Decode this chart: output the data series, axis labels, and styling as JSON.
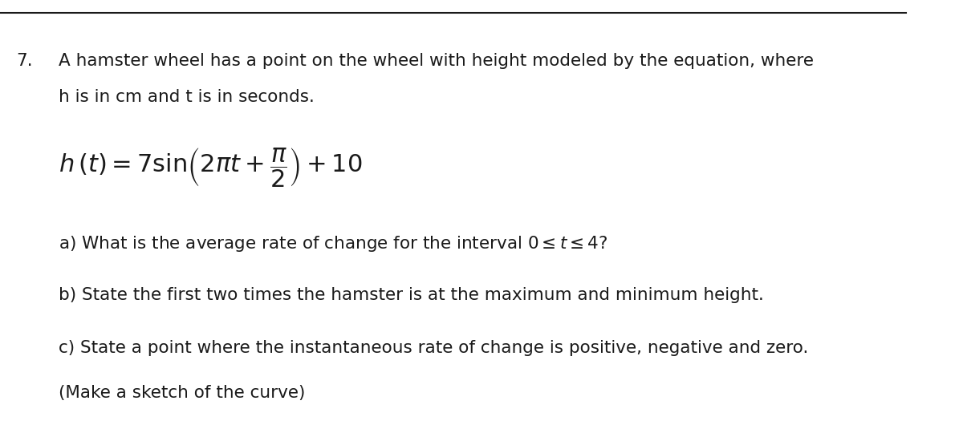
{
  "background_color": "#ffffff",
  "number_label": "7.",
  "line1": "A hamster wheel has a point on the wheel with height modeled by the equation, where",
  "line2": "h is in cm and t is in seconds.",
  "equation_latex": "$h\\,(t) = 7\\sin\\!\\left(2\\pi t + \\dfrac{\\pi}{2}\\right) + 10$",
  "part_a": "a) What is the average rate of change for the interval $0 \\leq t \\leq 4$?",
  "part_b": "b) State the first two times the hamster is at the maximum and minimum height.",
  "part_c1": "c) State a point where the instantaneous rate of change is positive, negative and zero.",
  "part_c2": "(Make a sketch of the curve)",
  "text_color": "#1a1a1a",
  "font_size_body": 15.5,
  "font_size_eq": 22
}
